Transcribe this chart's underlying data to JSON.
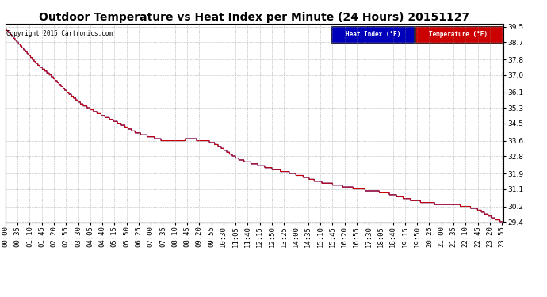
{
  "title": "Outdoor Temperature vs Heat Index per Minute (24 Hours) 20151127",
  "copyright": "Copyright 2015 Cartronics.com",
  "legend_heat_index": "Heat Index (°F)",
  "legend_temperature": "Temperature (°F)",
  "heat_index_color": "#0000bb",
  "temperature_color": "#cc0000",
  "y_min": 29.4,
  "y_max": 39.5,
  "y_ticks": [
    29.4,
    30.2,
    31.1,
    31.9,
    32.8,
    33.6,
    34.5,
    35.3,
    36.1,
    37.0,
    37.8,
    38.7,
    39.5
  ],
  "background_color": "#ffffff",
  "grid_color": "#888888",
  "title_fontsize": 10,
  "tick_fontsize": 6.5,
  "n_minutes": 1440,
  "x_tick_interval": 35,
  "temp_keypoints": [
    [
      0,
      39.4
    ],
    [
      30,
      38.8
    ],
    [
      60,
      38.2
    ],
    [
      90,
      37.6
    ],
    [
      130,
      37.0
    ],
    [
      180,
      36.1
    ],
    [
      220,
      35.5
    ],
    [
      270,
      35.0
    ],
    [
      330,
      34.5
    ],
    [
      380,
      34.0
    ],
    [
      420,
      33.8
    ],
    [
      460,
      33.6
    ],
    [
      490,
      33.6
    ],
    [
      510,
      33.6
    ],
    [
      530,
      33.7
    ],
    [
      545,
      33.7
    ],
    [
      560,
      33.6
    ],
    [
      580,
      33.6
    ],
    [
      600,
      33.5
    ],
    [
      620,
      33.3
    ],
    [
      660,
      32.8
    ],
    [
      680,
      32.6
    ],
    [
      700,
      32.5
    ],
    [
      720,
      32.4
    ],
    [
      740,
      32.3
    ],
    [
      760,
      32.2
    ],
    [
      780,
      32.1
    ],
    [
      810,
      32.0
    ],
    [
      830,
      31.9
    ],
    [
      850,
      31.8
    ],
    [
      870,
      31.7
    ],
    [
      900,
      31.5
    ],
    [
      930,
      31.4
    ],
    [
      960,
      31.3
    ],
    [
      990,
      31.2
    ],
    [
      1020,
      31.1
    ],
    [
      1060,
      31.0
    ],
    [
      1100,
      30.9
    ],
    [
      1140,
      30.7
    ],
    [
      1180,
      30.5
    ],
    [
      1220,
      30.4
    ],
    [
      1260,
      30.3
    ],
    [
      1300,
      30.3
    ],
    [
      1330,
      30.2
    ],
    [
      1360,
      30.1
    ],
    [
      1380,
      29.9
    ],
    [
      1400,
      29.7
    ],
    [
      1420,
      29.5
    ],
    [
      1439,
      29.4
    ]
  ]
}
